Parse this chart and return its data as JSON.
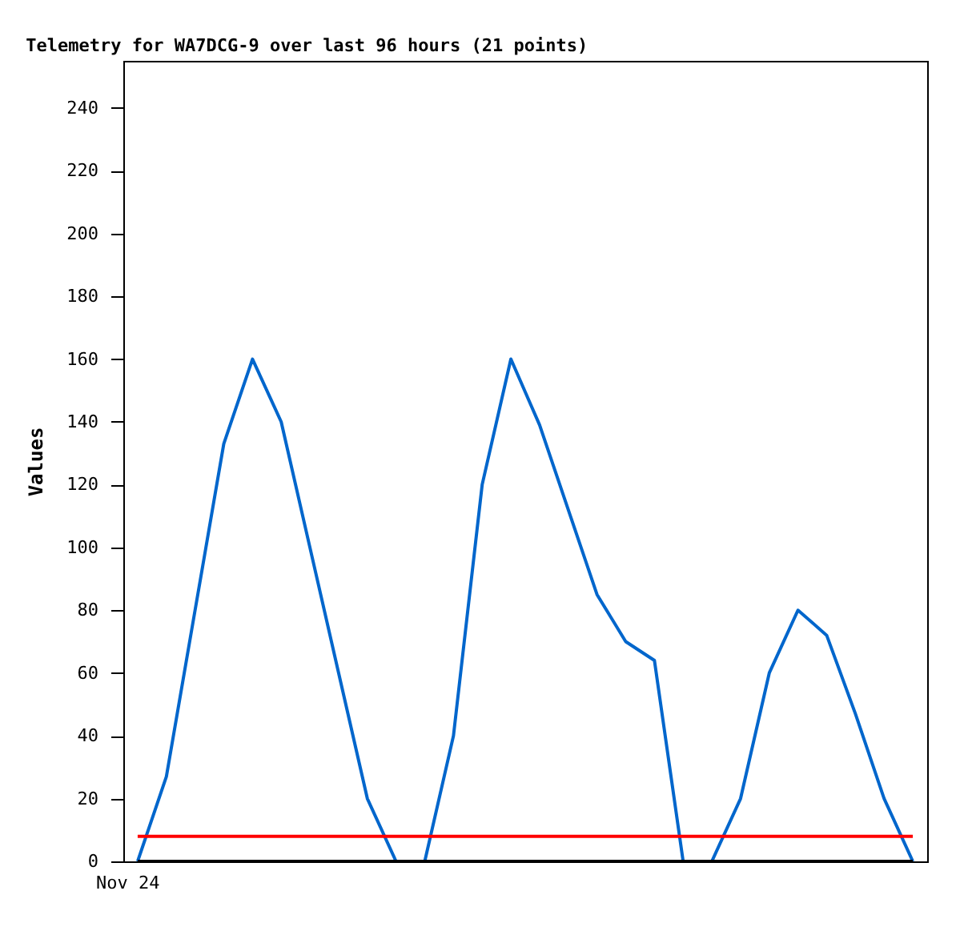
{
  "chart_data": {
    "type": "line",
    "title": "Telemetry for WA7DCG-9 over last 96 hours (21 points)",
    "ylabel": "Values",
    "categories": [
      null,
      null,
      null,
      null,
      null,
      null,
      null,
      null,
      null,
      null,
      null,
      null,
      null,
      null,
      null,
      null,
      null,
      null,
      null,
      null,
      null,
      null,
      null,
      null,
      null,
      null,
      null,
      null
    ],
    "annotations": [
      "Nov 24"
    ],
    "grid": false,
    "ylim": [
      0,
      255
    ],
    "yticks": [
      0,
      20,
      40,
      60,
      80,
      100,
      120,
      140,
      160,
      180,
      200,
      220,
      240
    ],
    "series": [
      {
        "color": "#0066cc",
        "values": [
          0,
          27,
          80,
          133,
          160,
          140,
          100,
          60,
          20,
          0,
          0,
          40,
          120,
          160,
          139,
          112,
          85,
          70,
          64,
          0,
          0,
          20,
          60,
          80,
          72,
          47,
          20,
          0
        ]
      },
      {
        "color": "#ff0000",
        "values": [
          8,
          8,
          8,
          8,
          8,
          8,
          8,
          8,
          8,
          8,
          8,
          8,
          8,
          8,
          8,
          8,
          8,
          8,
          8,
          8,
          8,
          8,
          8,
          8,
          8,
          8,
          8,
          8
        ]
      },
      {
        "color": "#000000",
        "values": [
          0,
          0,
          0,
          0,
          0,
          0,
          0,
          0,
          0,
          0,
          0,
          0,
          0,
          0,
          0,
          0,
          0,
          0,
          0,
          0,
          0,
          0,
          0,
          0,
          0,
          0,
          0,
          0
        ]
      }
    ]
  }
}
